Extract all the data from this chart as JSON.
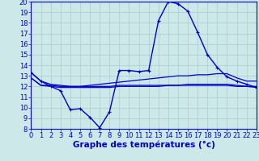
{
  "bg_color": "#cce8e8",
  "grid_color": "#aacccc",
  "line_color": "#0000cc",
  "xlabel": "Graphe des températures (°c)",
  "xlabel_color": "#0000cc",
  "xlabel_fontsize": 7.5,
  "tick_color": "#0000cc",
  "tick_fontsize": 6,
  "ylim": [
    8,
    20
  ],
  "xlim": [
    0,
    23
  ],
  "yticks": [
    8,
    9,
    10,
    11,
    12,
    13,
    14,
    15,
    16,
    17,
    18,
    19,
    20
  ],
  "xticks": [
    0,
    1,
    2,
    3,
    4,
    5,
    6,
    7,
    8,
    9,
    10,
    11,
    12,
    13,
    14,
    15,
    16,
    17,
    18,
    19,
    20,
    21,
    22,
    23
  ],
  "curve_main": [
    [
      0,
      13.3
    ],
    [
      1,
      12.5
    ],
    [
      2,
      12.0
    ],
    [
      3,
      11.6
    ],
    [
      4,
      9.8
    ],
    [
      5,
      9.9
    ],
    [
      6,
      9.1
    ],
    [
      7,
      8.1
    ],
    [
      8,
      9.6
    ],
    [
      9,
      13.5
    ],
    [
      10,
      13.5
    ],
    [
      11,
      13.4
    ],
    [
      12,
      13.5
    ],
    [
      13,
      18.2
    ],
    [
      14,
      20.0
    ],
    [
      15,
      19.8
    ],
    [
      16,
      19.1
    ],
    [
      17,
      17.1
    ],
    [
      18,
      15.0
    ],
    [
      19,
      13.8
    ],
    [
      20,
      12.9
    ],
    [
      21,
      12.5
    ],
    [
      22,
      12.2
    ],
    [
      23,
      11.9
    ]
  ],
  "curve_tmax": [
    [
      0,
      13.3
    ],
    [
      1,
      12.5
    ],
    [
      2,
      12.2
    ],
    [
      3,
      12.1
    ],
    [
      4,
      12.0
    ],
    [
      5,
      12.0
    ],
    [
      6,
      12.1
    ],
    [
      7,
      12.2
    ],
    [
      8,
      12.3
    ],
    [
      9,
      12.4
    ],
    [
      10,
      12.5
    ],
    [
      11,
      12.6
    ],
    [
      12,
      12.7
    ],
    [
      13,
      12.8
    ],
    [
      14,
      12.9
    ],
    [
      15,
      13.0
    ],
    [
      16,
      13.0
    ],
    [
      17,
      13.1
    ],
    [
      18,
      13.1
    ],
    [
      19,
      13.2
    ],
    [
      20,
      13.2
    ],
    [
      21,
      12.8
    ],
    [
      22,
      12.5
    ],
    [
      23,
      12.5
    ]
  ],
  "curve_tmin": [
    [
      0,
      12.8
    ],
    [
      1,
      12.1
    ],
    [
      2,
      12.0
    ],
    [
      3,
      11.9
    ],
    [
      4,
      11.9
    ],
    [
      5,
      11.9
    ],
    [
      6,
      11.9
    ],
    [
      7,
      11.9
    ],
    [
      8,
      11.9
    ],
    [
      9,
      12.0
    ],
    [
      10,
      12.0
    ],
    [
      11,
      12.0
    ],
    [
      12,
      12.0
    ],
    [
      13,
      12.0
    ],
    [
      14,
      12.1
    ],
    [
      15,
      12.1
    ],
    [
      16,
      12.1
    ],
    [
      17,
      12.1
    ],
    [
      18,
      12.1
    ],
    [
      19,
      12.1
    ],
    [
      20,
      12.1
    ],
    [
      21,
      12.0
    ],
    [
      22,
      12.0
    ],
    [
      23,
      11.9
    ]
  ],
  "curve_tmoy": [
    [
      0,
      12.8
    ],
    [
      1,
      12.1
    ],
    [
      2,
      12.1
    ],
    [
      3,
      12.0
    ],
    [
      4,
      12.0
    ],
    [
      5,
      12.0
    ],
    [
      6,
      12.0
    ],
    [
      7,
      12.0
    ],
    [
      8,
      12.0
    ],
    [
      9,
      12.1
    ],
    [
      10,
      12.1
    ],
    [
      11,
      12.1
    ],
    [
      12,
      12.1
    ],
    [
      13,
      12.1
    ],
    [
      14,
      12.1
    ],
    [
      15,
      12.1
    ],
    [
      16,
      12.2
    ],
    [
      17,
      12.2
    ],
    [
      18,
      12.2
    ],
    [
      19,
      12.2
    ],
    [
      20,
      12.2
    ],
    [
      21,
      12.1
    ],
    [
      22,
      12.0
    ],
    [
      23,
      12.0
    ]
  ]
}
